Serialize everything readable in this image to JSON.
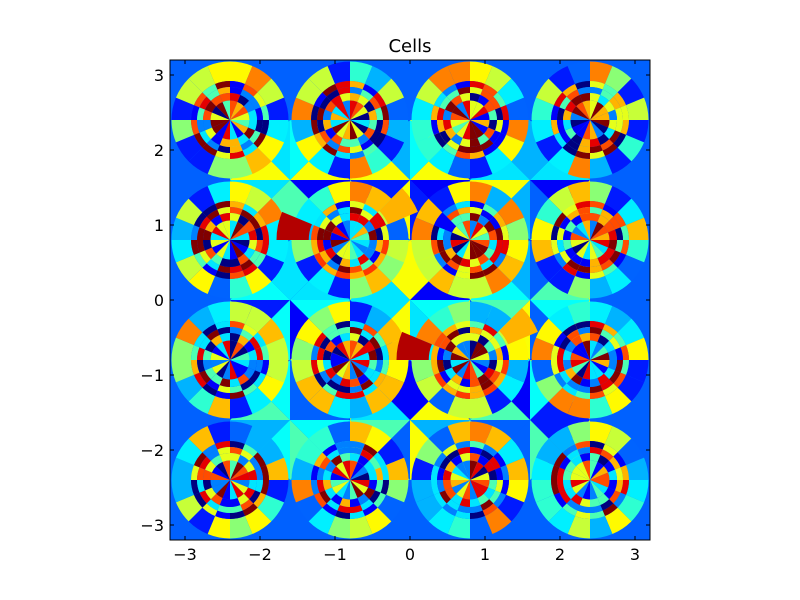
{
  "chart_data": {
    "type": "heatmap",
    "title": "Cells",
    "xlabel": "",
    "ylabel": "",
    "xlim": [
      -3.2,
      3.2
    ],
    "ylim": [
      -3.2,
      3.2
    ],
    "x_ticks": [
      {
        "value": -3,
        "label": "−3"
      },
      {
        "value": -2,
        "label": "−2"
      },
      {
        "value": -1,
        "label": "−1"
      },
      {
        "value": 0,
        "label": "0"
      },
      {
        "value": 1,
        "label": "1"
      },
      {
        "value": 2,
        "label": "2"
      },
      {
        "value": 3,
        "label": "3"
      }
    ],
    "y_ticks": [
      {
        "value": 3,
        "label": "3"
      },
      {
        "value": 2,
        "label": "2"
      },
      {
        "value": 1,
        "label": "1"
      },
      {
        "value": 0,
        "label": "0"
      },
      {
        "value": -1,
        "label": "−1"
      },
      {
        "value": -2,
        "label": "−2"
      },
      {
        "value": -3,
        "label": "−3"
      }
    ],
    "grid": false,
    "colormap": "jet",
    "cell_period": 1.6,
    "motif_centers_standard": [
      [
        -2.4,
        2.4
      ],
      [
        -0.8,
        2.4
      ],
      [
        0.8,
        2.4
      ],
      [
        2.4,
        2.4
      ],
      [
        -2.4,
        0.8
      ],
      [
        0.8,
        0.8
      ],
      [
        2.4,
        0.8
      ],
      [
        -2.4,
        -0.8
      ],
      [
        -0.8,
        -0.8
      ],
      [
        2.4,
        -0.8
      ],
      [
        -2.4,
        -2.4
      ],
      [
        -0.8,
        -2.4
      ],
      [
        0.8,
        -2.4
      ],
      [
        2.4,
        -2.4
      ]
    ],
    "motif_centers_special": [
      [
        -0.8,
        0.8
      ],
      [
        0.8,
        -0.8
      ]
    ]
  }
}
